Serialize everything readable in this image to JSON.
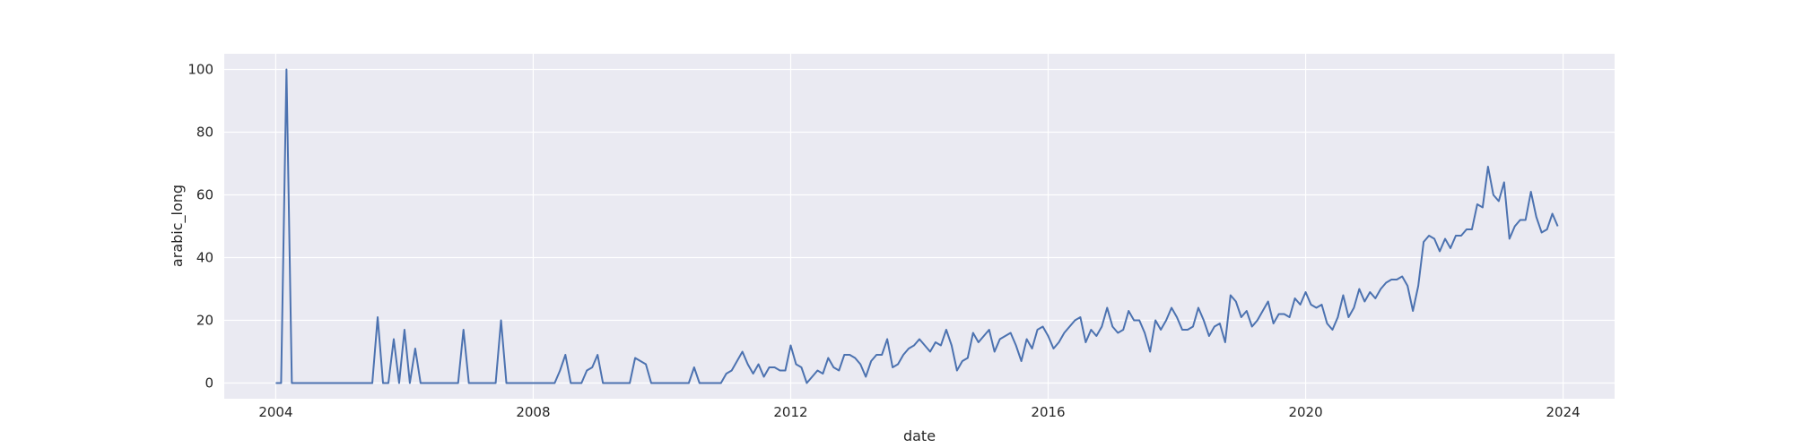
{
  "chart_data": {
    "type": "line",
    "title": "",
    "xlabel": "date",
    "ylabel": "arabic_long",
    "x_unit": "year",
    "xlim": [
      2003.2,
      2024.8
    ],
    "ylim": [
      -5,
      105
    ],
    "xticks": [
      2004,
      2008,
      2012,
      2016,
      2020,
      2024
    ],
    "xtick_labels": [
      "2004",
      "2008",
      "2012",
      "2016",
      "2020",
      "2024"
    ],
    "yticks": [
      0,
      20,
      40,
      60,
      80,
      100
    ],
    "ytick_labels": [
      "0",
      "20",
      "40",
      "60",
      "80",
      "100"
    ],
    "grid": true,
    "legend": "none",
    "colors": {
      "background": "#eaeaf2",
      "grid": "#ffffff",
      "line": "#4c72b0",
      "text": "#262626"
    },
    "series": [
      {
        "start": "2004-01",
        "frequency": "monthly",
        "values": [
          0,
          0,
          100,
          0,
          0,
          0,
          0,
          0,
          0,
          0,
          0,
          0,
          0,
          0,
          0,
          0,
          0,
          0,
          0,
          21,
          0,
          0,
          14,
          0,
          17,
          0,
          11,
          0,
          0,
          0,
          0,
          0,
          0,
          0,
          0,
          17,
          0,
          0,
          0,
          0,
          0,
          0,
          20,
          0,
          0,
          0,
          0,
          0,
          0,
          0,
          0,
          0,
          0,
          4,
          9,
          0,
          0,
          0,
          4,
          5,
          9,
          0,
          0,
          0,
          0,
          0,
          0,
          8,
          7,
          6,
          0,
          0,
          0,
          0,
          0,
          0,
          0,
          0,
          5,
          0,
          0,
          0,
          0,
          0,
          3,
          4,
          7,
          10,
          6,
          3,
          6,
          2,
          5,
          5,
          4,
          4,
          12,
          6,
          5,
          0,
          2,
          4,
          3,
          8,
          5,
          4,
          9,
          9,
          8,
          6,
          2,
          7,
          9,
          9,
          14,
          5,
          6,
          9,
          11,
          12,
          14,
          12,
          10,
          13,
          12,
          17,
          12,
          4,
          7,
          8,
          16,
          13,
          15,
          17,
          10,
          14,
          15,
          16,
          12,
          7,
          14,
          11,
          17,
          18,
          15,
          11,
          13,
          16,
          18,
          20,
          21,
          13,
          17,
          15,
          18,
          24,
          18,
          16,
          17,
          23,
          20,
          20,
          16,
          10,
          20,
          17,
          20,
          24,
          21,
          17,
          17,
          18,
          24,
          20,
          15,
          18,
          19,
          13,
          28,
          26,
          21,
          23,
          18,
          20,
          23,
          26,
          19,
          22,
          22,
          21,
          27,
          25,
          29,
          25,
          24,
          25,
          19,
          17,
          21,
          28,
          21,
          24,
          30,
          26,
          29,
          27,
          30,
          32,
          33,
          33,
          34,
          31,
          23,
          31,
          45,
          47,
          46,
          42,
          46,
          43,
          47,
          47,
          49,
          49,
          57,
          56,
          69,
          60,
          58,
          64,
          46,
          50,
          52,
          52,
          61,
          53,
          48,
          49,
          54,
          50
        ]
      }
    ]
  }
}
